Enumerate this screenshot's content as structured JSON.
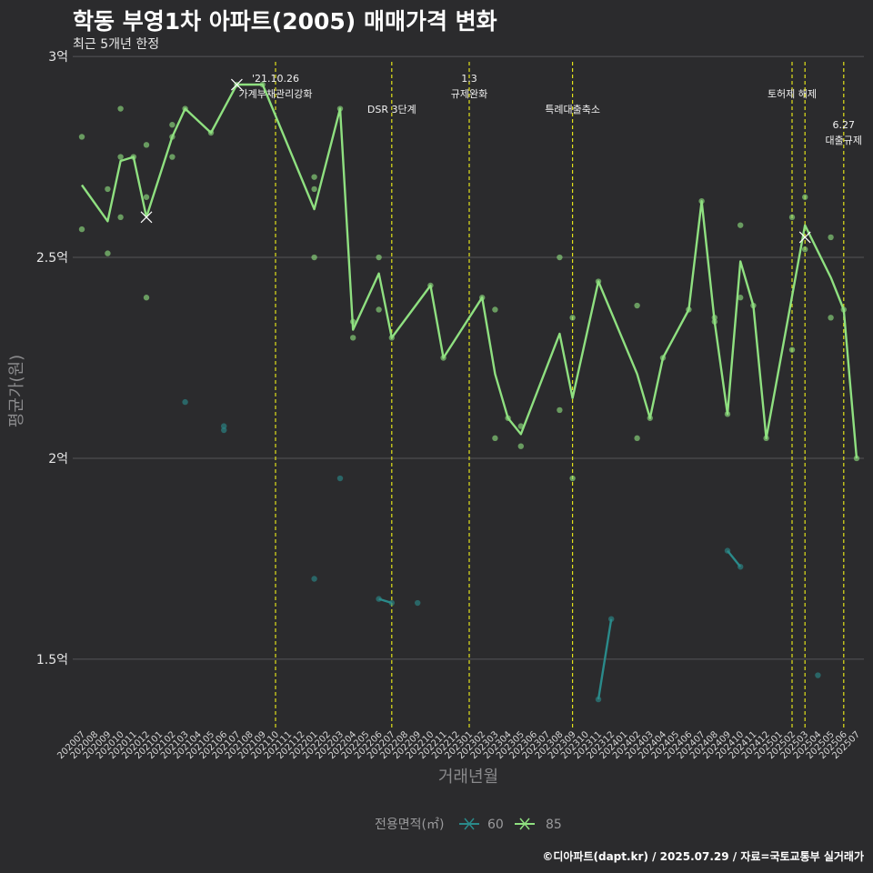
{
  "title": "학동 부영1차 아파트(2005) 매매가격 변화",
  "subtitle": "최근 5개년 한정",
  "caption": "©디아파트(dapt.kr) / 2025.07.29 / 자료=국토교통부 실거래가",
  "colors": {
    "background": "#2b2b2d",
    "series_60": "#2a8a8a",
    "series_85": "#8fe080",
    "event_line": "#e2e21a"
  },
  "chart_data": {
    "type": "line",
    "xlabel": "거래년월",
    "ylabel": "평균가(원)",
    "ylim": [
      1.33,
      3.05
    ],
    "yticks": [
      {
        "value": 1.5,
        "label": "1.5억"
      },
      {
        "value": 2.0,
        "label": "2억"
      },
      {
        "value": 2.5,
        "label": "2.5억"
      },
      {
        "value": 3.0,
        "label": "3억"
      }
    ],
    "x_categories": [
      "202007",
      "202008",
      "202009",
      "202010",
      "202011",
      "202012",
      "202101",
      "202102",
      "202103",
      "202104",
      "202105",
      "202106",
      "202107",
      "202108",
      "202109",
      "202110",
      "202111",
      "202112",
      "202201",
      "202202",
      "202203",
      "202204",
      "202205",
      "202206",
      "202207",
      "202208",
      "202209",
      "202210",
      "202211",
      "202212",
      "202301",
      "202302",
      "202303",
      "202304",
      "202305",
      "202306",
      "202307",
      "202308",
      "202309",
      "202310",
      "202311",
      "202312",
      "202401",
      "202402",
      "202403",
      "202404",
      "202405",
      "202406",
      "202407",
      "202408",
      "202409",
      "202410",
      "202411",
      "202412",
      "202501",
      "202502",
      "202503",
      "202504",
      "202505",
      "202506",
      "202507"
    ],
    "grid": true,
    "legend": {
      "title": "전용면적(㎡)",
      "position": "bottom",
      "entries": [
        "60",
        "85"
      ]
    },
    "events": [
      {
        "x": "202110",
        "lines": [
          "'21.10.26",
          "가계부채관리강화"
        ],
        "level": 1
      },
      {
        "x": "202207",
        "lines": [
          "DSR 3단계"
        ],
        "level": 2
      },
      {
        "x": "202301",
        "lines": [
          "1.3",
          "규제완화"
        ],
        "level": 1
      },
      {
        "x": "202309",
        "lines": [
          "특례대출축소"
        ],
        "level": 2
      },
      {
        "x": "202502",
        "lines": [
          "토허제 해제"
        ],
        "level": 1.5
      },
      {
        "x": "202503",
        "lines": [],
        "level": 1
      },
      {
        "x": "202506",
        "lines": [
          "6.27",
          "대출규제"
        ],
        "level": 2.5
      }
    ],
    "series": [
      {
        "name": "60",
        "color": "#2a8a8a",
        "line_segments": [
          [
            [
              "202206",
              1.65
            ],
            [
              "202207",
              1.64
            ]
          ],
          [
            [
              "202311",
              1.4
            ],
            [
              "202312",
              1.6
            ]
          ],
          [
            [
              "202409",
              1.77
            ],
            [
              "202410",
              1.73
            ]
          ]
        ],
        "points": [
          [
            "202103",
            2.14
          ],
          [
            "202106",
            2.08
          ],
          [
            "202106",
            2.07
          ],
          [
            "202201",
            1.7
          ],
          [
            "202203",
            1.95
          ],
          [
            "202206",
            1.65
          ],
          [
            "202207",
            1.64
          ],
          [
            "202209",
            1.64
          ],
          [
            "202311",
            1.4
          ],
          [
            "202312",
            1.6
          ],
          [
            "202409",
            1.77
          ],
          [
            "202410",
            1.73
          ],
          [
            "202504",
            1.46
          ]
        ],
        "cross_points": []
      },
      {
        "name": "85",
        "color": "#8fe080",
        "line": [
          [
            "202007",
            2.68
          ],
          [
            "202009",
            2.59
          ],
          [
            "202010",
            2.74
          ],
          [
            "202011",
            2.75
          ],
          [
            "202012",
            2.6
          ],
          [
            "202102",
            2.8
          ],
          [
            "202103",
            2.87
          ],
          [
            "202105",
            2.81
          ],
          [
            "202107",
            2.93
          ],
          [
            "202109",
            2.93
          ],
          [
            "202201",
            2.62
          ],
          [
            "202203",
            2.87
          ],
          [
            "202204",
            2.32
          ],
          [
            "202206",
            2.46
          ],
          [
            "202207",
            2.3
          ],
          [
            "202210",
            2.43
          ],
          [
            "202211",
            2.25
          ],
          [
            "202302",
            2.4
          ],
          [
            "202303",
            2.21
          ],
          [
            "202304",
            2.1
          ],
          [
            "202305",
            2.06
          ],
          [
            "202308",
            2.31
          ],
          [
            "202309",
            2.15
          ],
          [
            "202311",
            2.44
          ],
          [
            "202402",
            2.21
          ],
          [
            "202403",
            2.1
          ],
          [
            "202404",
            2.25
          ],
          [
            "202406",
            2.37
          ],
          [
            "202407",
            2.64
          ],
          [
            "202408",
            2.34
          ],
          [
            "202409",
            2.11
          ],
          [
            "202410",
            2.49
          ],
          [
            "202411",
            2.38
          ],
          [
            "202412",
            2.05
          ],
          [
            "202503",
            2.58
          ],
          [
            "202505",
            2.45
          ],
          [
            "202506",
            2.37
          ],
          [
            "202507",
            2.0
          ]
        ],
        "points": [
          [
            "202007",
            2.8
          ],
          [
            "202007",
            2.57
          ],
          [
            "202009",
            2.67
          ],
          [
            "202009",
            2.51
          ],
          [
            "202010",
            2.87
          ],
          [
            "202010",
            2.75
          ],
          [
            "202010",
            2.6
          ],
          [
            "202011",
            2.75
          ],
          [
            "202012",
            2.78
          ],
          [
            "202012",
            2.65
          ],
          [
            "202012",
            2.4
          ],
          [
            "202102",
            2.83
          ],
          [
            "202102",
            2.8
          ],
          [
            "202102",
            2.75
          ],
          [
            "202103",
            2.87
          ],
          [
            "202105",
            2.81
          ],
          [
            "202107",
            2.93
          ],
          [
            "202109",
            2.93
          ],
          [
            "202201",
            2.7
          ],
          [
            "202201",
            2.67
          ],
          [
            "202201",
            2.5
          ],
          [
            "202203",
            2.87
          ],
          [
            "202204",
            2.34
          ],
          [
            "202204",
            2.3
          ],
          [
            "202206",
            2.5
          ],
          [
            "202206",
            2.37
          ],
          [
            "202207",
            2.3
          ],
          [
            "202210",
            2.43
          ],
          [
            "202211",
            2.25
          ],
          [
            "202302",
            2.4
          ],
          [
            "202303",
            2.37
          ],
          [
            "202303",
            2.05
          ],
          [
            "202304",
            2.1
          ],
          [
            "202305",
            2.08
          ],
          [
            "202305",
            2.03
          ],
          [
            "202308",
            2.5
          ],
          [
            "202308",
            2.12
          ],
          [
            "202309",
            2.35
          ],
          [
            "202309",
            1.95
          ],
          [
            "202311",
            2.44
          ],
          [
            "202402",
            2.38
          ],
          [
            "202402",
            2.05
          ],
          [
            "202403",
            2.1
          ],
          [
            "202404",
            2.25
          ],
          [
            "202406",
            2.37
          ],
          [
            "202407",
            2.64
          ],
          [
            "202408",
            2.35
          ],
          [
            "202408",
            2.34
          ],
          [
            "202409",
            2.11
          ],
          [
            "202410",
            2.58
          ],
          [
            "202410",
            2.4
          ],
          [
            "202411",
            2.38
          ],
          [
            "202412",
            2.05
          ],
          [
            "202502",
            2.6
          ],
          [
            "202502",
            2.27
          ],
          [
            "202503",
            2.65
          ],
          [
            "202503",
            2.52
          ],
          [
            "202505",
            2.55
          ],
          [
            "202505",
            2.35
          ],
          [
            "202506",
            2.37
          ],
          [
            "202507",
            2.0
          ]
        ],
        "cross_points": [
          [
            "202012",
            2.6
          ],
          [
            "202107",
            2.93
          ],
          [
            "202503",
            2.55
          ]
        ]
      }
    ]
  }
}
